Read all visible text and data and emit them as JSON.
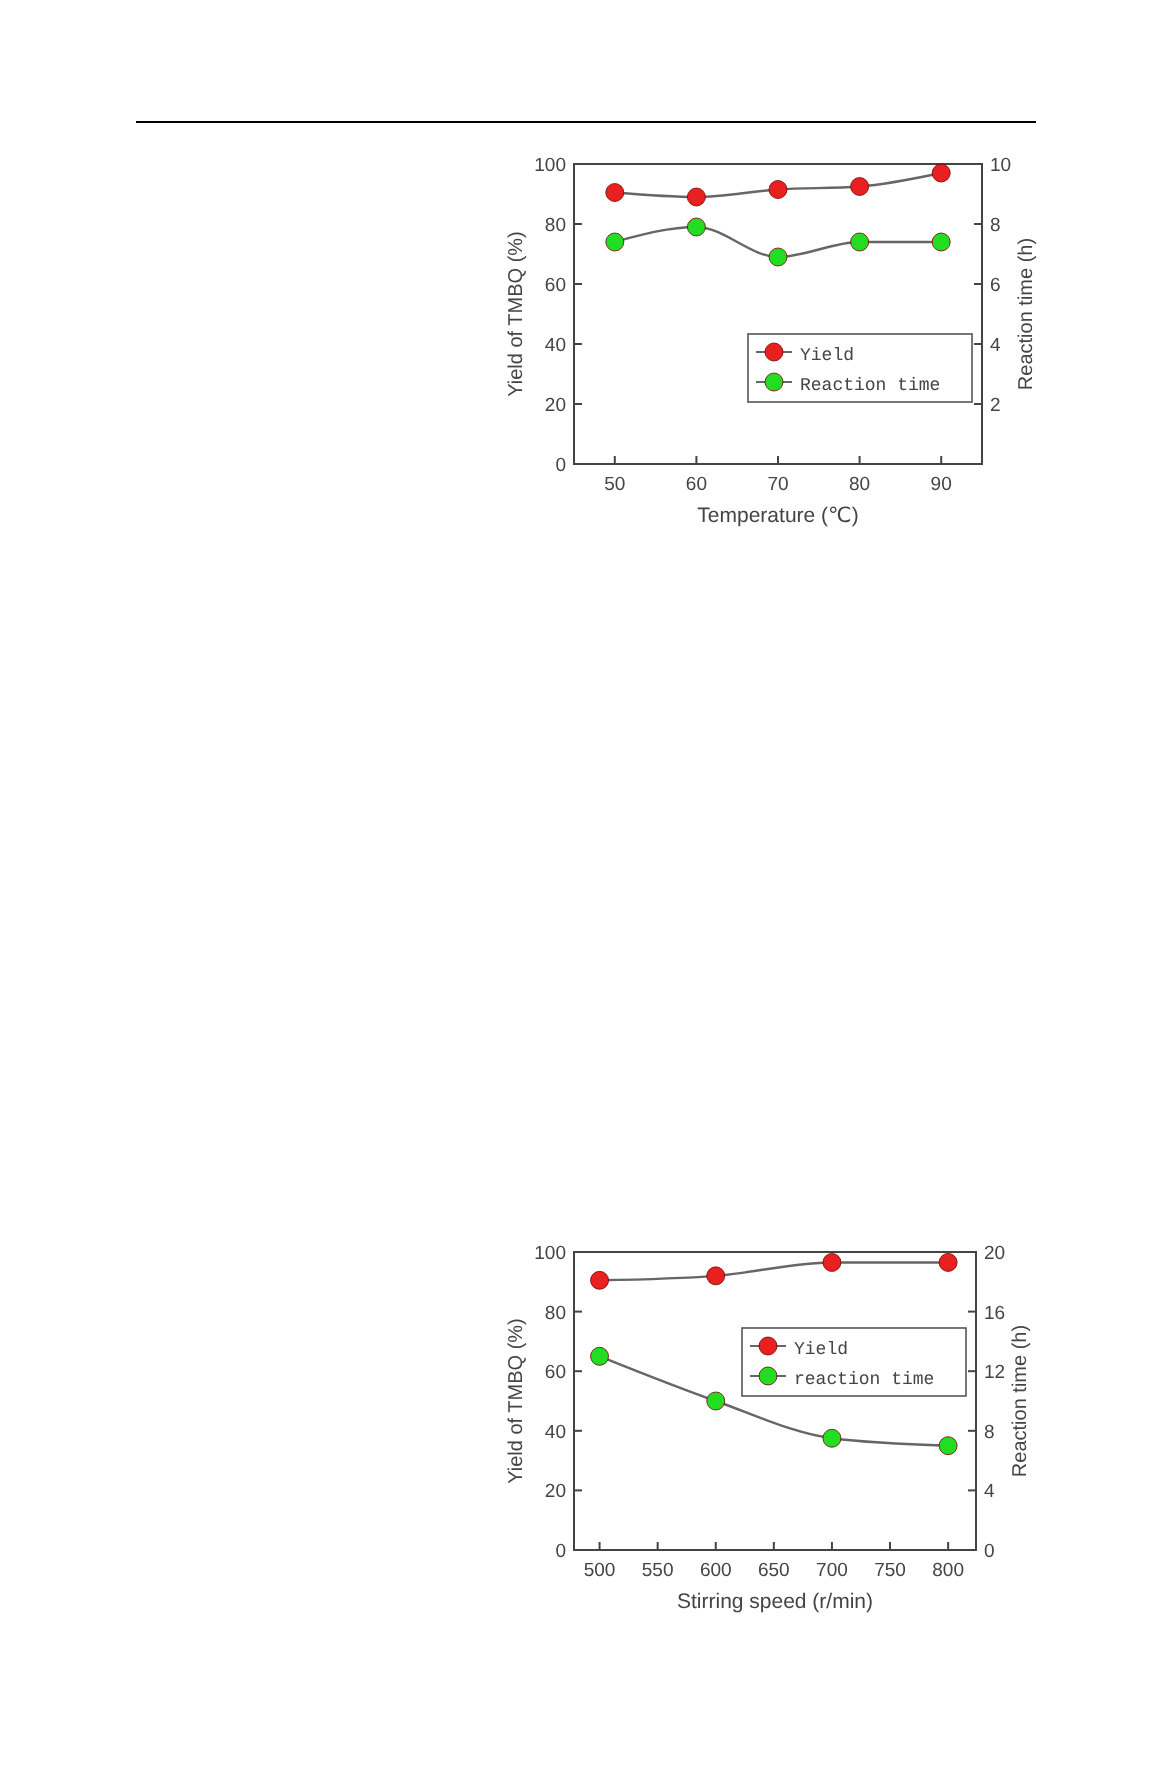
{
  "chart_data": [
    {
      "type": "line",
      "xlabel": "Temperature (℃)",
      "ylabel": "Yield of TMBQ (%)",
      "y2label": "Reaction time (h)",
      "x": [
        50,
        60,
        70,
        80,
        90
      ],
      "xlim": [
        45,
        95
      ],
      "xticks": [
        50,
        60,
        70,
        80,
        90
      ],
      "ylim": [
        0,
        100
      ],
      "yticks": [
        0,
        20,
        40,
        60,
        80,
        100
      ],
      "y2lim": [
        0,
        10
      ],
      "y2ticks": [
        2,
        4,
        6,
        8,
        10
      ],
      "marker": "circle",
      "legend": "right",
      "grid": false,
      "series": [
        {
          "name": "Yield",
          "color": "#e82020",
          "values": [
            90.5,
            89,
            91.5,
            92.5,
            97
          ]
        },
        {
          "name": "Reaction time",
          "color": "#22dd22",
          "axis": "y2",
          "values": [
            7.4,
            7.9,
            6.9,
            7.4,
            7.4
          ]
        }
      ]
    },
    {
      "type": "line",
      "xlabel": "Stirring speed (r/min)",
      "ylabel": "Yield of TMBQ (%)",
      "y2label": "Reaction time (h)",
      "x": [
        500,
        600,
        700,
        800
      ],
      "xlim": [
        478,
        824
      ],
      "xticks": [
        500,
        550,
        600,
        650,
        700,
        750,
        800
      ],
      "ylim": [
        0,
        100
      ],
      "yticks": [
        0,
        20,
        40,
        60,
        80,
        100
      ],
      "y2lim": [
        0,
        20
      ],
      "y2ticks": [
        0,
        4,
        8,
        12,
        16,
        20
      ],
      "marker": "circle",
      "legend": "top right",
      "grid": false,
      "series": [
        {
          "name": "Yield",
          "color": "#e82020",
          "values": [
            90.5,
            92,
            96.5,
            96.5
          ]
        },
        {
          "name": "reaction time",
          "color": "#22dd22",
          "axis": "y2",
          "values": [
            13,
            10,
            7.5,
            7
          ]
        }
      ]
    }
  ]
}
